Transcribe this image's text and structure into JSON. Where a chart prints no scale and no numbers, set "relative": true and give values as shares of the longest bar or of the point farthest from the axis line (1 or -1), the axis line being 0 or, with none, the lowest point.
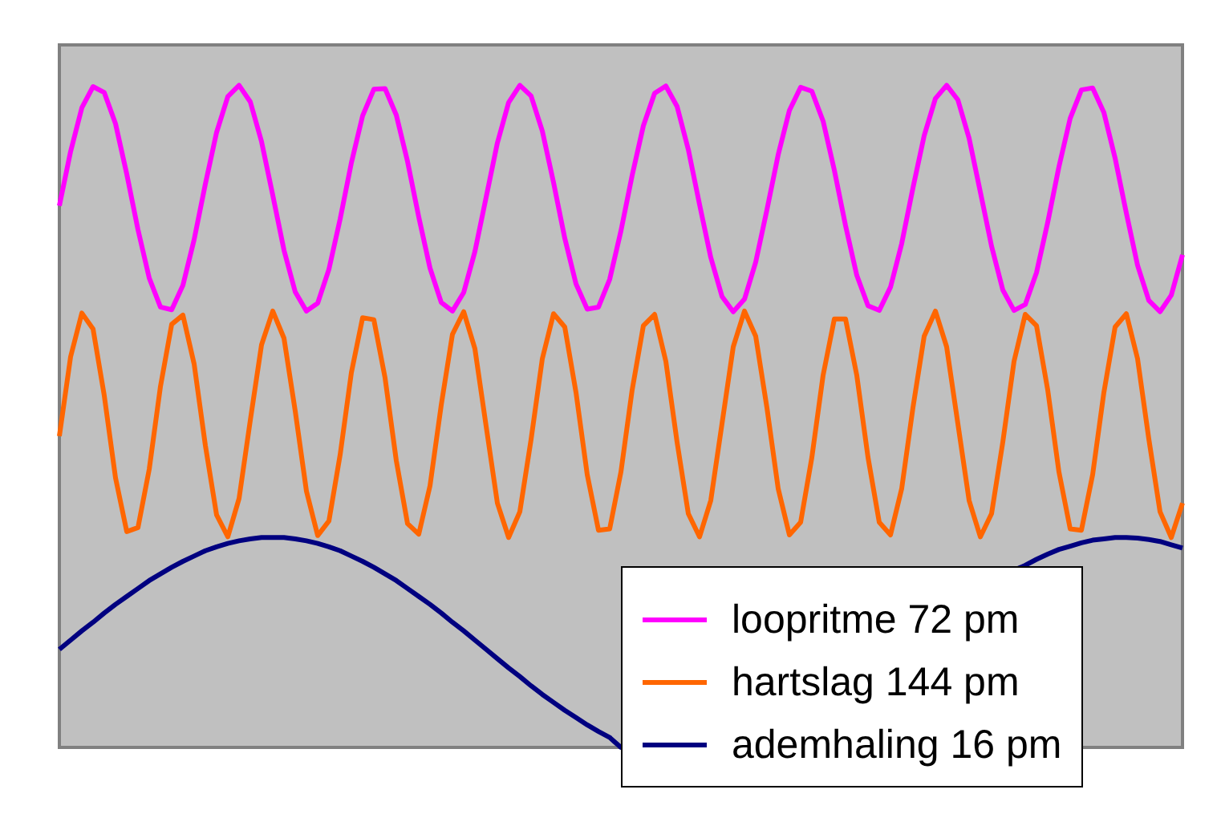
{
  "chart_data": {
    "type": "line",
    "relative": true,
    "legend": "bottom right",
    "categories": [
      null,
      null,
      null,
      null,
      null,
      null,
      null,
      null,
      null,
      null,
      null,
      null,
      null,
      null,
      null,
      null,
      null,
      null,
      null,
      null,
      null,
      null,
      null,
      null,
      null,
      null,
      null,
      null,
      null,
      null,
      null,
      null,
      null,
      null,
      null,
      null,
      null,
      null,
      null,
      null,
      null,
      null,
      null,
      null,
      null,
      null,
      null,
      null,
      null,
      null,
      null,
      null,
      null,
      null,
      null,
      null,
      null,
      null,
      null,
      null,
      null,
      null,
      null,
      null,
      null,
      null,
      null,
      null,
      null,
      null,
      null,
      null,
      null,
      null,
      null,
      null,
      null,
      null,
      null,
      null,
      null,
      null,
      null,
      null,
      null,
      null,
      null,
      null,
      null,
      null,
      null,
      null,
      null,
      null,
      null,
      null,
      null,
      null,
      null,
      null,
      null
    ],
    "series": [
      {
        "name": "loopritme 72 pm",
        "color": "#ff00ff",
        "values": [
          0.818,
          0.9,
          0.966,
          0.998,
          0.989,
          0.942,
          0.866,
          0.782,
          0.709,
          0.665,
          0.661,
          0.698,
          0.767,
          0.851,
          0.929,
          0.983,
          1.0,
          0.975,
          0.915,
          0.834,
          0.751,
          0.688,
          0.659,
          0.671,
          0.722,
          0.798,
          0.883,
          0.954,
          0.994,
          0.995,
          0.955,
          0.885,
          0.801,
          0.724,
          0.672,
          0.659,
          0.687,
          0.749,
          0.831,
          0.913,
          0.974,
          1.0,
          0.984,
          0.931,
          0.853,
          0.769,
          0.7,
          0.662,
          0.665,
          0.707,
          0.78,
          0.864,
          0.939,
          0.988,
          0.999,
          0.968,
          0.903,
          0.82,
          0.74,
          0.681,
          0.658,
          0.677,
          0.733,
          0.812,
          0.895,
          0.962,
          0.997,
          0.991,
          0.946,
          0.872,
          0.788,
          0.713,
          0.667,
          0.66,
          0.695,
          0.761,
          0.845,
          0.924,
          0.98,
          1.0,
          0.978,
          0.92,
          0.839,
          0.757,
          0.691,
          0.66,
          0.669,
          0.717,
          0.793,
          0.877,
          0.95,
          0.993,
          0.996,
          0.959,
          0.89,
          0.807,
          0.728,
          0.675,
          0.658,
          0.683,
          0.744
        ]
      },
      {
        "name": "hartslag 144 pm",
        "color": "#ff6600",
        "values": [
          0.47,
          0.59,
          0.656,
          0.632,
          0.531,
          0.407,
          0.326,
          0.332,
          0.42,
          0.545,
          0.639,
          0.653,
          0.579,
          0.456,
          0.351,
          0.318,
          0.376,
          0.494,
          0.608,
          0.659,
          0.618,
          0.508,
          0.387,
          0.32,
          0.342,
          0.442,
          0.566,
          0.649,
          0.646,
          0.558,
          0.433,
          0.338,
          0.322,
          0.395,
          0.517,
          0.624,
          0.658,
          0.602,
          0.485,
          0.369,
          0.317,
          0.356,
          0.465,
          0.587,
          0.655,
          0.635,
          0.536,
          0.412,
          0.328,
          0.33,
          0.416,
          0.54,
          0.637,
          0.654,
          0.583,
          0.461,
          0.353,
          0.318,
          0.373,
          0.489,
          0.605,
          0.659,
          0.621,
          0.513,
          0.391,
          0.321,
          0.34,
          0.438,
          0.562,
          0.647,
          0.647,
          0.562,
          0.438,
          0.34,
          0.321,
          0.391,
          0.513,
          0.621,
          0.659,
          0.605,
          0.489,
          0.373,
          0.318,
          0.353,
          0.461,
          0.583,
          0.654,
          0.637,
          0.54,
          0.416,
          0.33,
          0.328,
          0.412,
          0.536,
          0.635,
          0.655,
          0.587,
          0.466,
          0.356,
          0.317,
          0.369
        ]
      },
      {
        "name": "ademhaling 16 pm",
        "color": "#000080",
        "values": [
          0.148,
          0.162,
          0.176,
          0.189,
          0.203,
          0.216,
          0.228,
          0.24,
          0.252,
          0.262,
          0.272,
          0.281,
          0.289,
          0.297,
          0.303,
          0.308,
          0.312,
          0.315,
          0.317,
          0.317,
          0.317,
          0.315,
          0.312,
          0.308,
          0.303,
          0.297,
          0.289,
          0.281,
          0.272,
          0.262,
          0.252,
          0.24,
          0.228,
          0.216,
          0.203,
          0.189,
          0.176,
          0.162,
          0.148,
          0.134,
          0.12,
          0.107,
          0.093,
          0.08,
          0.068,
          0.056,
          0.045,
          0.034,
          0.024,
          0.015,
          0.0,
          null,
          null,
          null,
          null,
          null,
          null,
          null,
          null,
          null,
          null,
          null,
          null,
          null,
          null,
          null,
          null,
          null,
          null,
          null,
          null,
          null,
          null,
          null,
          null,
          null,
          null,
          null,
          null,
          null,
          null,
          null,
          null,
          null,
          null,
          null,
          0.275,
          0.284,
          0.292,
          0.299,
          0.304,
          0.309,
          0.313,
          0.315,
          0.317,
          0.317,
          0.316,
          0.314,
          0.311,
          0.306,
          0.301
        ]
      }
    ]
  }
}
